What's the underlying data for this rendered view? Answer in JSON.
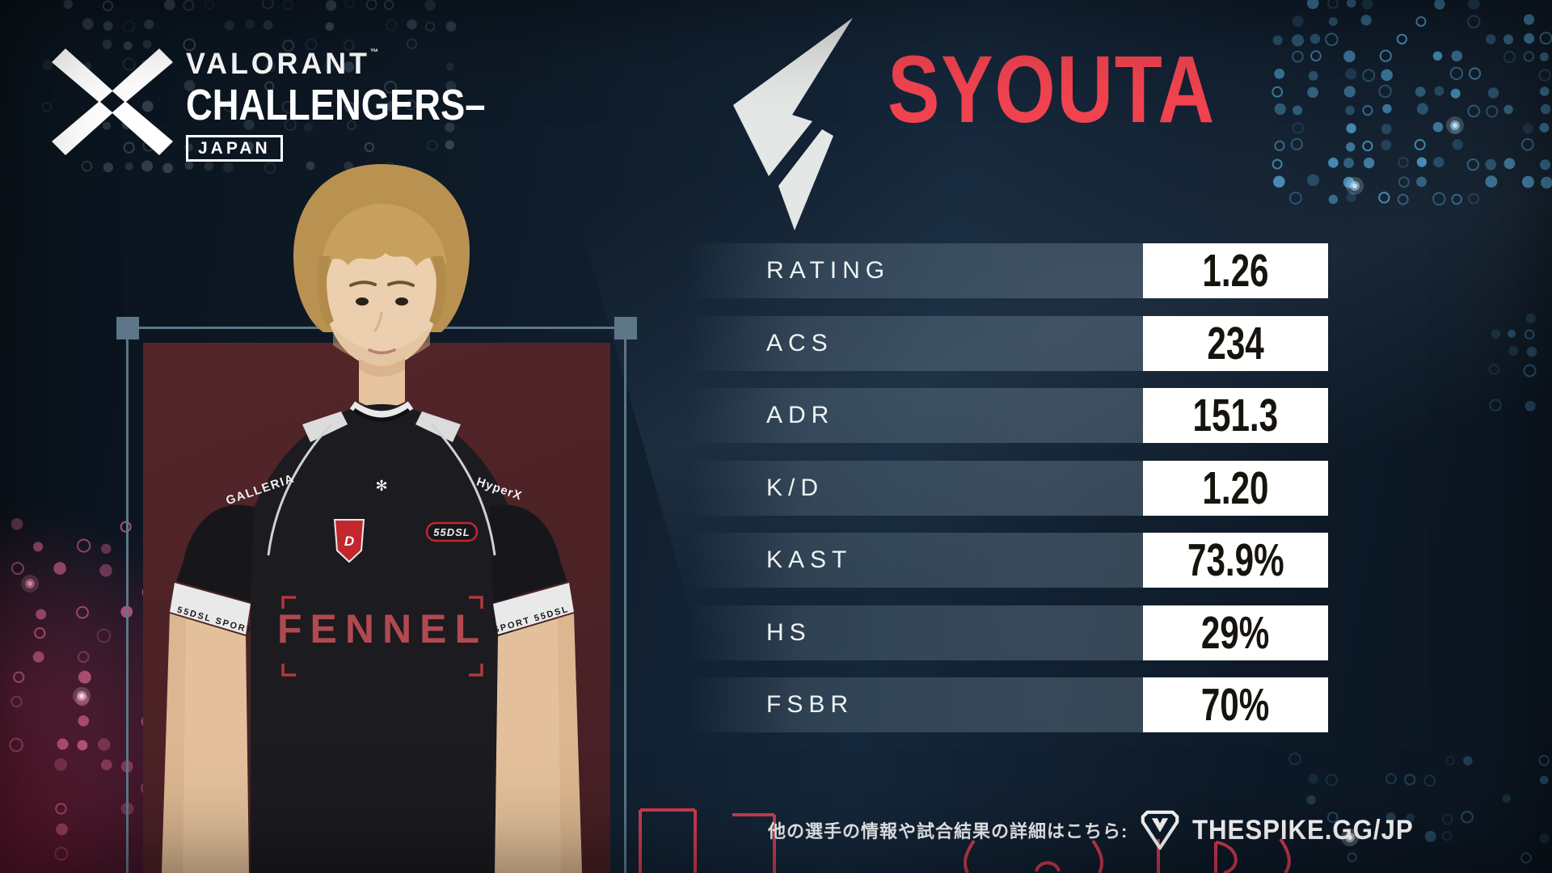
{
  "brand": {
    "wordmark": "VALORANT",
    "trademark": "™",
    "series": "CHALLENGERS–",
    "region": "JAPAN"
  },
  "player_card": {
    "name": "SYOUTA",
    "name_color": "#f24350",
    "team": "FENNEL"
  },
  "stats": [
    {
      "label": "RATING",
      "value": "1.26"
    },
    {
      "label": "ACS",
      "value": "234"
    },
    {
      "label": "ADR",
      "value": "151.3"
    },
    {
      "label": "K/D",
      "value": "1.20"
    },
    {
      "label": "KAST",
      "value": "73.9%"
    },
    {
      "label": "HS",
      "value": "29%"
    },
    {
      "label": "FSBR",
      "value": "70%"
    }
  ],
  "jersey": {
    "team_wordmark": "FENNEL",
    "left_shoulder_sponsor": "GALLERIA",
    "right_shoulder_sponsor": "HyperX",
    "chest_badge": "55DSL",
    "patch_monogram": "D",
    "sleeve_band_left": "55DSL SPORT",
    "sleeve_band_right": "SPORT 55DSL",
    "collar_emblem": "✻"
  },
  "footer": {
    "caption": "他の選手の情報や試合結果の詳細はこちら:",
    "site": "THESPIKE.GG/JP"
  },
  "colors": {
    "accent_red": "#e23f53",
    "value_box_bg": "#ffffff",
    "value_text": "#17140e",
    "panel_maroon": "#512528",
    "frame_gray": "#5d7688",
    "dot_blue": "#59b2e4",
    "dot_pink": "#ef6fa0",
    "name_red": "#f24350"
  }
}
